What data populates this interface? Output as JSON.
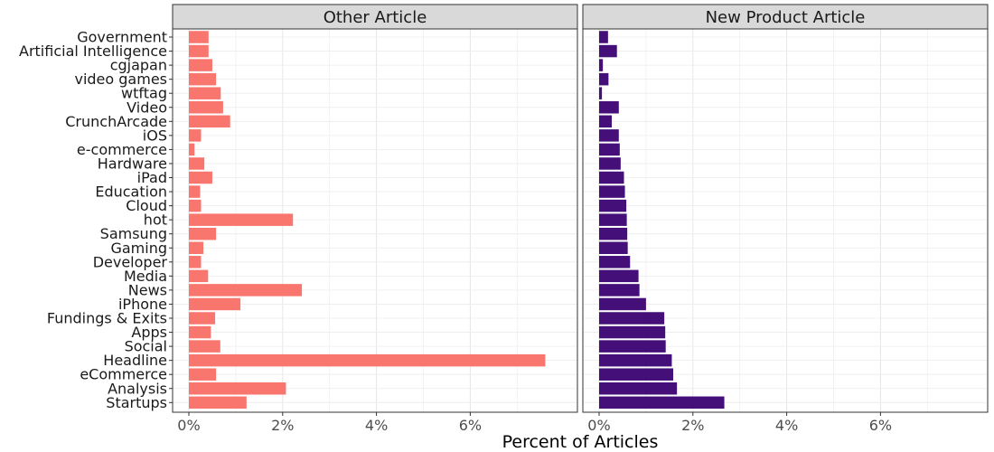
{
  "chart_data": {
    "type": "bar",
    "orientation": "horizontal",
    "xlabel": "Percent of Articles",
    "ylabel": "",
    "xlim": [
      0,
      0.079
    ],
    "x_ticks": [
      0,
      0.02,
      0.04,
      0.06
    ],
    "x_tick_labels": [
      "0%",
      "2%",
      "4%",
      "6%"
    ],
    "grid": true,
    "categories": [
      "Government",
      "Artificial Intelligence",
      "cgjapan",
      "video games",
      "wtftag",
      "Video",
      "CrunchArcade",
      "iOS",
      "e-commerce",
      "Hardware",
      "iPad",
      "Education",
      "Cloud",
      "hot",
      "Samsung",
      "Gaming",
      "Developer",
      "Media",
      "News",
      "iPhone",
      "Fundings & Exits",
      "Apps",
      "Social",
      "Headline",
      "eCommerce",
      "Analysis",
      "Startups"
    ],
    "panels": [
      {
        "label": "Other Article",
        "color": "#F8766D",
        "values": [
          0.0042,
          0.0042,
          0.005,
          0.0058,
          0.0068,
          0.0073,
          0.0088,
          0.0026,
          0.0012,
          0.0033,
          0.005,
          0.0024,
          0.0026,
          0.0222,
          0.0058,
          0.0031,
          0.0026,
          0.0041,
          0.0241,
          0.011,
          0.0056,
          0.0047,
          0.0067,
          0.076,
          0.0058,
          0.0207,
          0.0123
        ]
      },
      {
        "label": "New Product Article",
        "color": "#440F78",
        "values": [
          0.0019,
          0.0038,
          0.0008,
          0.002,
          0.0006,
          0.0042,
          0.0027,
          0.0042,
          0.0044,
          0.0046,
          0.0053,
          0.0055,
          0.0058,
          0.0059,
          0.006,
          0.0061,
          0.0066,
          0.0084,
          0.0086,
          0.01,
          0.0139,
          0.0141,
          0.0142,
          0.0155,
          0.0158,
          0.0166,
          0.0267
        ]
      }
    ]
  }
}
